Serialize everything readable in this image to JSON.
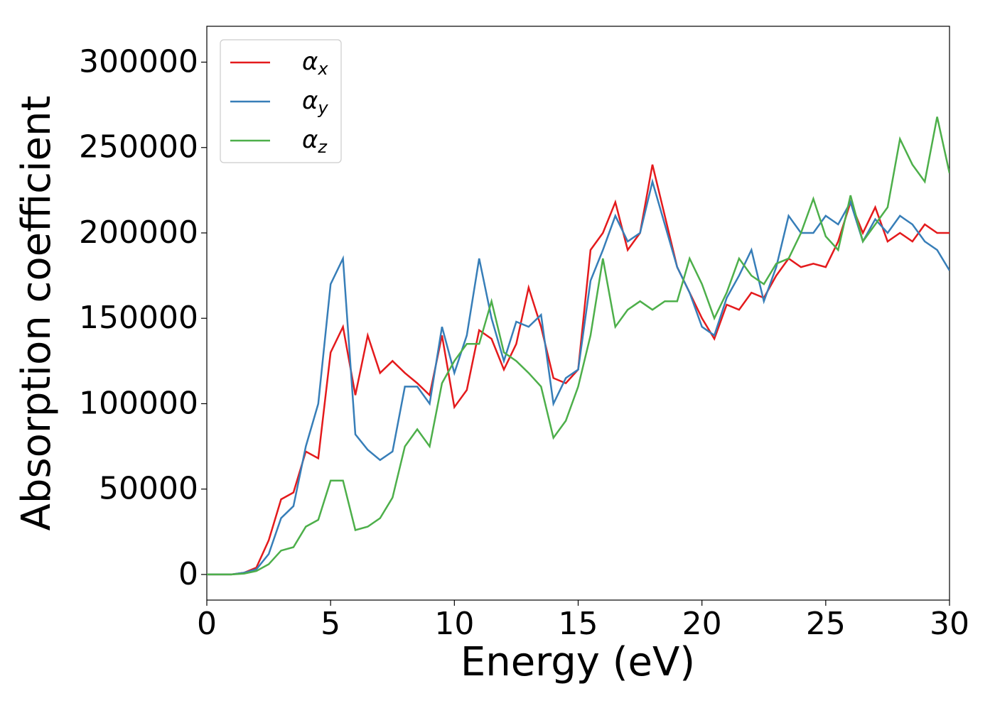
{
  "chart_data": {
    "type": "line",
    "xlabel": "Energy (eV)",
    "ylabel": "Absorption coefficient",
    "x": [
      0,
      0.5,
      1,
      1.5,
      2,
      2.5,
      3,
      3.5,
      4,
      4.5,
      5,
      5.5,
      6,
      6.5,
      7,
      7.5,
      8,
      8.5,
      9,
      9.5,
      10,
      10.5,
      11,
      11.5,
      12,
      12.5,
      13,
      13.5,
      14,
      14.5,
      15,
      15.5,
      16,
      16.5,
      17,
      17.5,
      18,
      18.5,
      19,
      19.5,
      20,
      20.5,
      21,
      21.5,
      22,
      22.5,
      23,
      23.5,
      24,
      24.5,
      25,
      25.5,
      26,
      26.5,
      27,
      27.5,
      28,
      28.5,
      29,
      29.5,
      30
    ],
    "series": [
      {
        "name": "α_x",
        "color": "#e41a1c",
        "values": [
          0,
          0,
          0,
          1000,
          4000,
          20000,
          44000,
          48000,
          72000,
          68000,
          130000,
          145000,
          105000,
          140000,
          118000,
          125000,
          118000,
          112000,
          105000,
          140000,
          98000,
          108000,
          143000,
          138000,
          120000,
          135000,
          168000,
          145000,
          115000,
          112000,
          120000,
          190000,
          200000,
          218000,
          190000,
          200000,
          240000,
          210000,
          180000,
          165000,
          150000,
          138000,
          158000,
          155000,
          165000,
          162000,
          175000,
          185000,
          180000,
          182000,
          180000,
          195000,
          218000,
          200000,
          215000,
          195000,
          200000,
          195000,
          205000,
          200000,
          200000
        ]
      },
      {
        "name": "α_y",
        "color": "#377eb8",
        "values": [
          0,
          0,
          0,
          1000,
          3000,
          12000,
          33000,
          40000,
          75000,
          100000,
          170000,
          185000,
          82000,
          73000,
          67000,
          72000,
          110000,
          110000,
          100000,
          145000,
          118000,
          140000,
          185000,
          150000,
          125000,
          148000,
          145000,
          152000,
          100000,
          115000,
          120000,
          172000,
          190000,
          210000,
          195000,
          200000,
          230000,
          205000,
          180000,
          165000,
          145000,
          140000,
          162000,
          175000,
          190000,
          160000,
          180000,
          210000,
          200000,
          200000,
          210000,
          205000,
          218000,
          195000,
          208000,
          200000,
          210000,
          205000,
          195000,
          190000,
          178000
        ]
      },
      {
        "name": "α_z",
        "color": "#4daf4a",
        "values": [
          0,
          0,
          0,
          500,
          2000,
          6000,
          14000,
          16000,
          28000,
          32000,
          55000,
          55000,
          26000,
          28000,
          33000,
          45000,
          75000,
          85000,
          75000,
          112000,
          125000,
          135000,
          135000,
          160000,
          130000,
          125000,
          118000,
          110000,
          80000,
          90000,
          110000,
          140000,
          185000,
          145000,
          155000,
          160000,
          155000,
          160000,
          160000,
          185000,
          170000,
          150000,
          165000,
          185000,
          175000,
          170000,
          182000,
          185000,
          200000,
          220000,
          198000,
          190000,
          222000,
          195000,
          205000,
          215000,
          255000,
          240000,
          230000,
          268000,
          235000
        ]
      }
    ],
    "xlim": [
      0,
      30
    ],
    "xticks": [
      0,
      5,
      10,
      15,
      20,
      25,
      30
    ],
    "ylim": [
      -15000,
      321000
    ],
    "yticks": [
      0,
      50000,
      100000,
      150000,
      200000,
      250000,
      300000
    ],
    "grid": false,
    "legend": "upper left"
  }
}
